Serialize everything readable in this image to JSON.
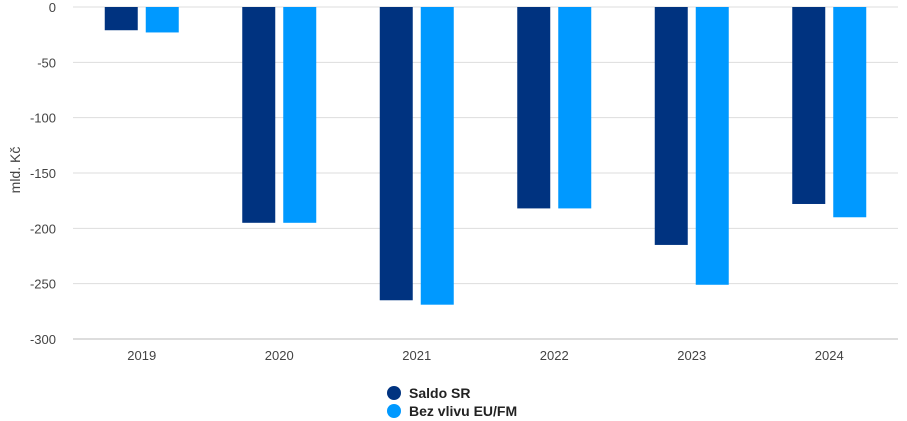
{
  "chart_data": {
    "type": "bar",
    "categories": [
      "2019",
      "2020",
      "2021",
      "2022",
      "2023",
      "2024"
    ],
    "series": [
      {
        "name": "Saldo SR",
        "color": "#003380",
        "values": [
          -21,
          -195,
          -265,
          -182,
          -215,
          -178
        ]
      },
      {
        "name": "Bez vlivu EU/FM",
        "color": "#0099ff",
        "values": [
          -23,
          -195,
          -269,
          -182,
          -251,
          -190
        ]
      }
    ],
    "title": "",
    "xlabel": "",
    "ylabel": "mld. Kč",
    "ylim": [
      -300,
      0
    ],
    "yticks": [
      0,
      -50,
      -100,
      -150,
      -200,
      -250,
      -300
    ],
    "grid": true,
    "legend_position": "bottom-center",
    "colors": {
      "grid": "#dddddd",
      "axis": "#bbbbbb",
      "text": "#444444"
    }
  }
}
